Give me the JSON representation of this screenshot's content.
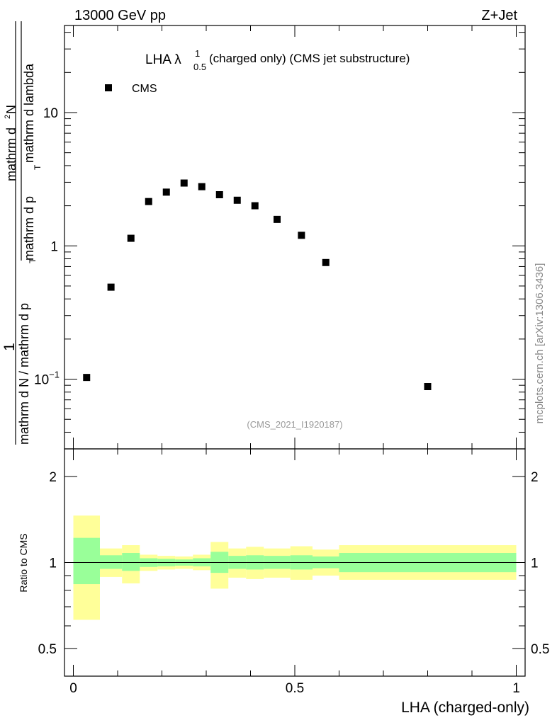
{
  "header": {
    "left": "13000 GeV pp",
    "right": "Z+Jet"
  },
  "plot_title": {
    "prefix": "LHA ",
    "lambda": "λ",
    "superscript": "1",
    "subscript": "0.5",
    "suffix": " (charged only) (CMS jet substructure)"
  },
  "watermark": "(CMS_2021_I1920187)",
  "side_label": "mcplots.cern.ch [arXiv:1306.3436]",
  "y_label": {
    "numerator": "1",
    "denominator_left": "mathrm d N / mathrm d p",
    "denominator_sub": "T",
    "frac_numerator": "mathrm d",
    "frac_sup": "2",
    "frac_numerator_tail": "N",
    "frac_denominator_left": "mathrm d p",
    "frac_denominator_sub": "T",
    "frac_denominator_right": " mathrm d lambda"
  },
  "ratio_label": "Ratio to CMS",
  "x_label": "LHA (charged-only)",
  "legend": {
    "label": "CMS"
  },
  "top_ticks": {
    "y": [
      {
        "value": 0.1,
        "base": "10",
        "exp": "−1"
      },
      {
        "value": 1,
        "label": "1"
      },
      {
        "value": 10,
        "label": "10"
      }
    ]
  },
  "ratio_ticks": {
    "y": [
      {
        "value": 0.5,
        "label": "0.5"
      },
      {
        "value": 1,
        "label": "1"
      },
      {
        "value": 2,
        "label": "2"
      }
    ],
    "x": [
      {
        "value": 0,
        "label": "0"
      },
      {
        "value": 0.5,
        "label": "0.5"
      },
      {
        "value": 1,
        "label": "1"
      }
    ]
  },
  "colors": {
    "inner_band": "#99ff99",
    "outer_band": "#ffff99",
    "marker": "#000000"
  },
  "chart_data": [
    {
      "type": "scatter",
      "name": "main",
      "series": [
        {
          "name": "CMS",
          "x": [
            0.03,
            0.085,
            0.13,
            0.17,
            0.21,
            0.25,
            0.29,
            0.33,
            0.37,
            0.41,
            0.46,
            0.515,
            0.57,
            0.8
          ],
          "y": [
            0.103,
            0.49,
            1.14,
            2.15,
            2.53,
            2.96,
            2.78,
            2.42,
            2.2,
            2.0,
            1.58,
            1.2,
            0.75,
            0.088
          ]
        }
      ],
      "xlim": [
        -0.02,
        1.02
      ],
      "ylim": [
        0.03,
        45
      ],
      "yscale": "log",
      "legend_position": "top-left"
    },
    {
      "type": "area",
      "name": "ratio",
      "bins": [
        {
          "lo": 0.0,
          "hi": 0.06,
          "in_lo": 0.84,
          "in_hi": 1.22,
          "out_lo": 0.63,
          "out_hi": 1.46
        },
        {
          "lo": 0.06,
          "hi": 0.11,
          "in_lo": 0.95,
          "in_hi": 1.06,
          "out_lo": 0.89,
          "out_hi": 1.12
        },
        {
          "lo": 0.11,
          "hi": 0.15,
          "in_lo": 0.935,
          "in_hi": 1.08,
          "out_lo": 0.845,
          "out_hi": 1.15
        },
        {
          "lo": 0.15,
          "hi": 0.19,
          "in_lo": 0.965,
          "in_hi": 1.035,
          "out_lo": 0.935,
          "out_hi": 1.065
        },
        {
          "lo": 0.19,
          "hi": 0.23,
          "in_lo": 0.97,
          "in_hi": 1.03,
          "out_lo": 0.945,
          "out_hi": 1.055
        },
        {
          "lo": 0.23,
          "hi": 0.27,
          "in_lo": 0.975,
          "in_hi": 1.025,
          "out_lo": 0.95,
          "out_hi": 1.05
        },
        {
          "lo": 0.27,
          "hi": 0.31,
          "in_lo": 0.97,
          "in_hi": 1.035,
          "out_lo": 0.94,
          "out_hi": 1.065
        },
        {
          "lo": 0.31,
          "hi": 0.35,
          "in_lo": 0.92,
          "in_hi": 1.09,
          "out_lo": 0.81,
          "out_hi": 1.18
        },
        {
          "lo": 0.35,
          "hi": 0.39,
          "in_lo": 0.95,
          "in_hi": 1.055,
          "out_lo": 0.885,
          "out_hi": 1.12
        },
        {
          "lo": 0.39,
          "hi": 0.43,
          "in_lo": 0.945,
          "in_hi": 1.06,
          "out_lo": 0.875,
          "out_hi": 1.135
        },
        {
          "lo": 0.43,
          "hi": 0.49,
          "in_lo": 0.95,
          "in_hi": 1.055,
          "out_lo": 0.885,
          "out_hi": 1.12
        },
        {
          "lo": 0.49,
          "hi": 0.54,
          "in_lo": 0.945,
          "in_hi": 1.06,
          "out_lo": 0.87,
          "out_hi": 1.14
        },
        {
          "lo": 0.54,
          "hi": 0.6,
          "in_lo": 0.955,
          "in_hi": 1.05,
          "out_lo": 0.9,
          "out_hi": 1.11
        },
        {
          "lo": 0.6,
          "hi": 1.0,
          "in_lo": 0.925,
          "in_hi": 1.08,
          "out_lo": 0.87,
          "out_hi": 1.15
        }
      ],
      "reference_line": 1,
      "xlim": [
        -0.02,
        1.02
      ],
      "ylim": [
        0.4,
        2.5
      ],
      "yscale": "log"
    }
  ]
}
